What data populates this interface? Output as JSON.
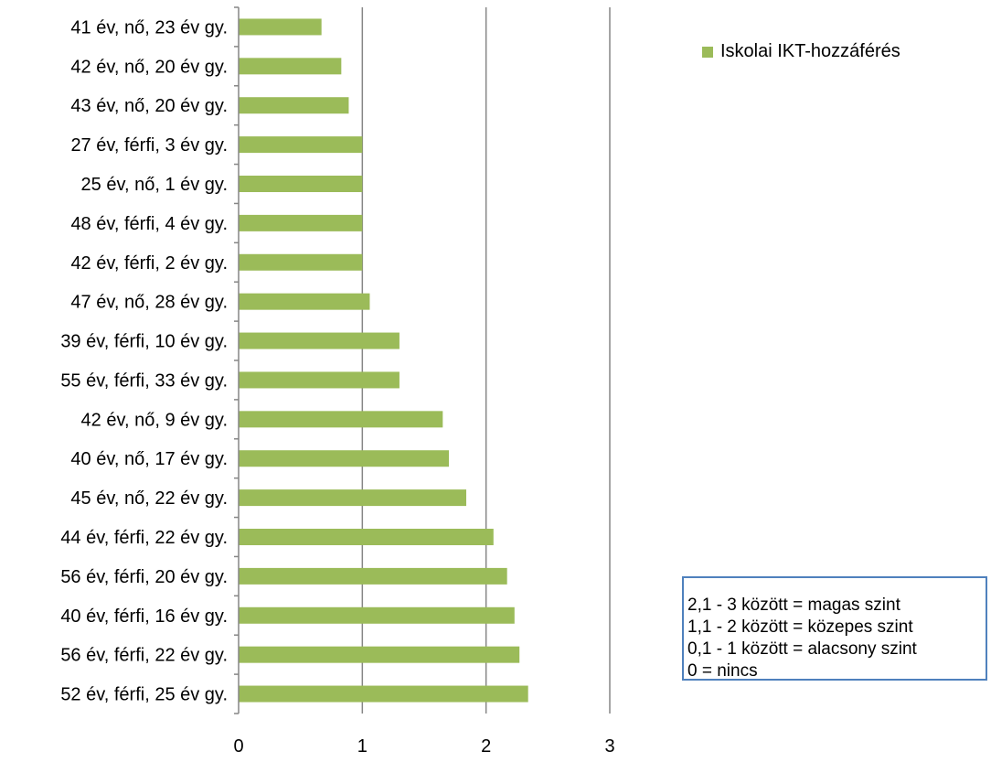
{
  "chart_data": {
    "type": "bar",
    "orientation": "horizontal",
    "categories": [
      "41 év, nő, 23 év gy.",
      "42 év, nő, 20 év gy.",
      "43 év, nő, 20 év gy.",
      "27 év, férfi, 3 év gy.",
      "25 év, nő, 1 év gy.",
      "48 év, férfi, 4 év gy.",
      "42 év, férfi, 2 év gy.",
      "47 év, nő, 28 év gy.",
      "39 év, férfi, 10 év gy.",
      "55 év, férfi, 33 év gy.",
      "42 év, nő, 9 év gy.",
      "40 év, nő, 17 év gy.",
      "45 év, nő, 22 év gy.",
      "44 év, férfi, 22 év gy.",
      "56 év, férfi, 20 év gy.",
      "40 év, férfi, 16 év gy.",
      "56 év, férfi, 22 év gy.",
      "52 év, férfi, 25 év gy."
    ],
    "series": [
      {
        "name": "Iskolai IKT-hozzáférés",
        "values": [
          0.67,
          0.83,
          0.89,
          1.0,
          1.0,
          1.0,
          1.0,
          1.06,
          1.3,
          1.3,
          1.65,
          1.7,
          1.84,
          2.06,
          2.17,
          2.23,
          2.27,
          2.34
        ],
        "color": "#9bbb59"
      }
    ],
    "xlim": [
      0,
      3
    ],
    "xticks": [
      "0",
      "1",
      "2",
      "3"
    ],
    "grid": "vertical major gridlines",
    "legend_position": "top-right",
    "title": "",
    "xlabel": "",
    "ylabel": ""
  },
  "legend": {
    "label": "Iskolai IKT-hozzáférés",
    "color": "#9bbb59"
  },
  "note": {
    "lines": [
      "2,1 - 3 között = magas szint",
      "1,1 - 2 között = közepes szint",
      "0,1 - 1 között = alacsony szint",
      "0 = nincs"
    ],
    "border_color": "#4f81bd"
  },
  "colors": {
    "bar": "#9bbb59",
    "gridline": "#868686",
    "note_border": "#4f81bd"
  }
}
